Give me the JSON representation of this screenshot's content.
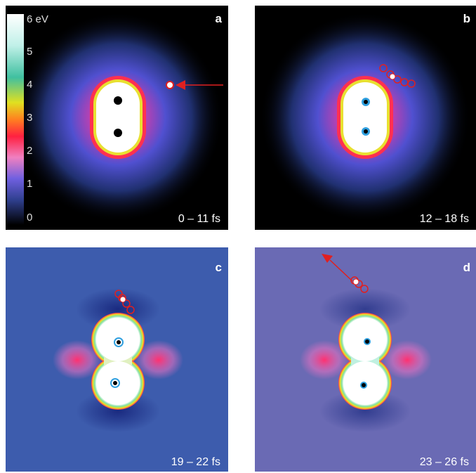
{
  "colorbar": {
    "labels": [
      "6 eV",
      "5",
      "4",
      "3",
      "2",
      "1",
      "0"
    ]
  },
  "panels": [
    {
      "label": "a",
      "time": "0 – 11 fs"
    },
    {
      "label": "b",
      "time": "12 – 18 fs"
    },
    {
      "label": "c",
      "time": "19 – 22 fs"
    },
    {
      "label": "d",
      "time": "23 – 26 fs"
    }
  ]
}
